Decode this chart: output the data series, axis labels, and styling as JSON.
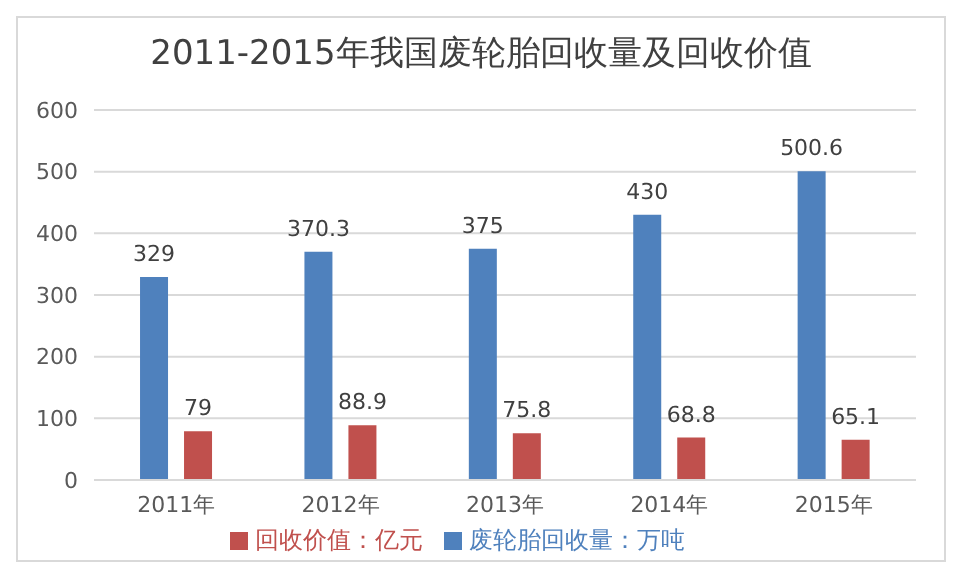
{
  "chart_data": {
    "type": "bar",
    "title": "2011-2015年我国废轮胎回收量及回收价值",
    "categories": [
      "2011年",
      "2012年",
      "2013年",
      "2014年",
      "2015年"
    ],
    "series": [
      {
        "name": "废轮胎回收量：万吨",
        "color": "#4f81bd",
        "values": [
          329,
          370.3,
          375,
          430,
          500.6
        ]
      },
      {
        "name": "回收价值：亿元",
        "color": "#c0504d",
        "values": [
          79,
          88.9,
          75.8,
          68.8,
          65.1
        ]
      }
    ],
    "ylim": [
      0,
      600
    ],
    "yticks": [
      0,
      100,
      200,
      300,
      400,
      500,
      600
    ],
    "grid": "y",
    "legend": "bottom",
    "data_labels": true
  }
}
